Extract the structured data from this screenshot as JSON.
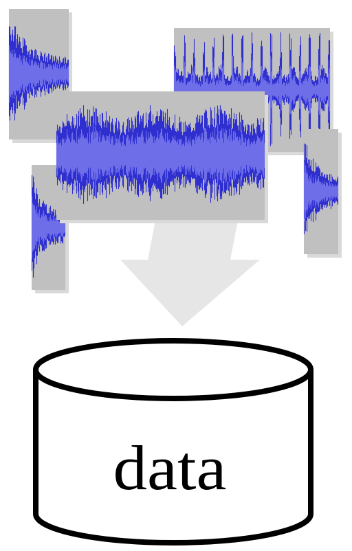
{
  "database": {
    "label": "data"
  },
  "colors": {
    "panel": "#c0c0c0",
    "panel_shadow": "#d9d9d9",
    "wave_light": "#6e6ee8",
    "wave_dark": "#2f2fd0",
    "arrow": "#e6e6e6",
    "outline": "#000000"
  }
}
